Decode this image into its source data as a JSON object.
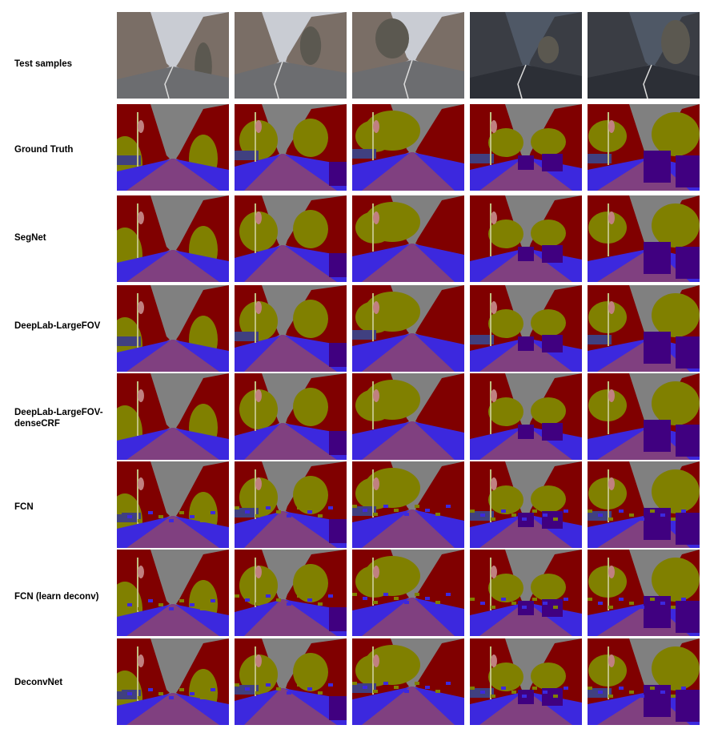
{
  "row_labels": [
    "Test samples",
    "Ground Truth",
    "SegNet",
    "DeepLab-LargeFOV",
    "DeepLab-LargeFOV-\ndenseCRF",
    "FCN",
    "FCN (learn deconv)",
    "DeconvNet"
  ],
  "class_colors": {
    "sky": "#808080",
    "building": "#800000",
    "tree": "#808000",
    "road": "#804080",
    "pavement": "#3c28de",
    "car": "#400080",
    "pole": "#c0c080",
    "sign_symbol": "#c08080",
    "fence": "#404080",
    "pedestrian": "#404000",
    "bicyclist": "#0080c0",
    "unlabelled": "#000000"
  },
  "photo_palette": {
    "sky": "#c9ccd3",
    "dusk_sky": "#4f5866",
    "building": "#7a6e66",
    "dark_building": "#3a3d44",
    "road": "#6c6d70",
    "dark_road": "#2c2f36",
    "tree": "#5b5850"
  }
}
